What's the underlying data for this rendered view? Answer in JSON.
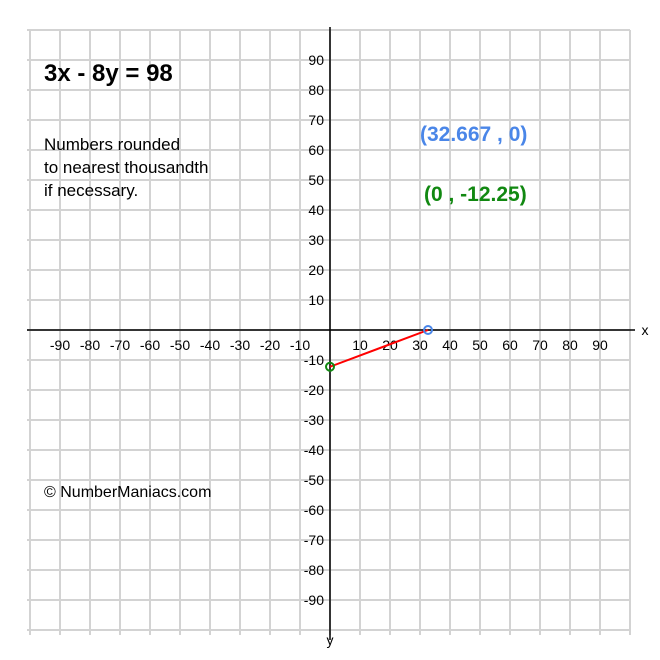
{
  "equation": "3x - 8y = 98",
  "note_lines": [
    "Numbers rounded",
    "to nearest thousandth",
    "if necessary."
  ],
  "copyright": "© NumberManiacs.com",
  "points_text": {
    "x_intercept": "(32.667 , 0)",
    "y_intercept": "(0 , -12.25)"
  },
  "chart_data": {
    "type": "line",
    "xlabel": "x",
    "ylabel": "y",
    "xlim": [
      -100,
      100
    ],
    "ylim": [
      -100,
      100
    ],
    "grid": true,
    "grid_step": 10,
    "x_ticks": [
      -90,
      -80,
      -70,
      -60,
      -50,
      -40,
      -30,
      -20,
      -10,
      10,
      20,
      30,
      40,
      50,
      60,
      70,
      80,
      90
    ],
    "y_ticks": [
      90,
      80,
      70,
      60,
      50,
      40,
      30,
      20,
      10,
      -10,
      -20,
      -30,
      -40,
      -50,
      -60,
      -70,
      -80,
      -90
    ],
    "segment": [
      [
        0,
        -12.25
      ],
      [
        32.667,
        0
      ]
    ],
    "points": [
      {
        "x": 32.667,
        "y": 0,
        "color": "#4a86e8"
      },
      {
        "x": 0,
        "y": -12.25,
        "color": "#118811"
      }
    ],
    "line_color": "#ff0000"
  },
  "colors": {
    "grid": "#d3d3d3",
    "axis": "#000000",
    "x_intercept": "#4a86e8",
    "y_intercept": "#118811"
  }
}
